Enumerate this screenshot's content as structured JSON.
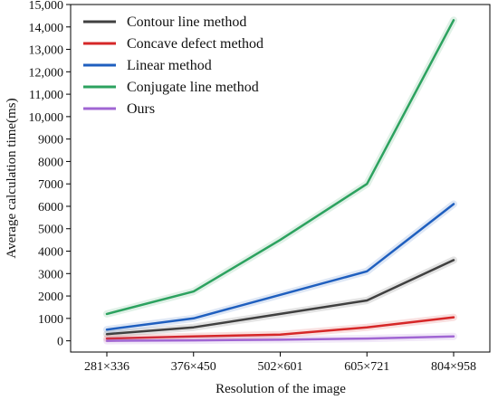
{
  "chart_data": {
    "type": "line",
    "title": "",
    "xlabel": "Resolution of the image",
    "ylabel": "Average calculation time(ms)",
    "categories": [
      "281×336",
      "376×450",
      "502×601",
      "605×721",
      "804×958"
    ],
    "ylim": [
      -500,
      15000
    ],
    "yticks": [
      0,
      1000,
      2000,
      3000,
      4000,
      5000,
      6000,
      7000,
      8000,
      9000,
      10000,
      11000,
      12000,
      13000,
      14000,
      15000
    ],
    "ytick_labels": [
      "0",
      "1000",
      "2000",
      "3000",
      "4000",
      "5000",
      "6000",
      "7000",
      "8000",
      "9000",
      "10,000",
      "11,000",
      "12,000",
      "13,000",
      "14,000",
      "15,000"
    ],
    "grid": false,
    "legend_position": "top-left",
    "series": [
      {
        "name": "Contour line method",
        "color": "#404040",
        "values": [
          300,
          600,
          1200,
          1800,
          3600
        ]
      },
      {
        "name": "Concave defect method",
        "color": "#d62728",
        "values": [
          100,
          200,
          280,
          600,
          1050
        ]
      },
      {
        "name": "Linear method",
        "color": "#1f5fbf",
        "values": [
          500,
          1000,
          2050,
          3100,
          6100
        ]
      },
      {
        "name": "Conjugate line method",
        "color": "#2ca25f",
        "values": [
          1200,
          2200,
          4500,
          7000,
          14300
        ]
      },
      {
        "name": "Ours",
        "color": "#a066d3",
        "values": [
          0,
          20,
          50,
          100,
          200
        ]
      }
    ]
  }
}
